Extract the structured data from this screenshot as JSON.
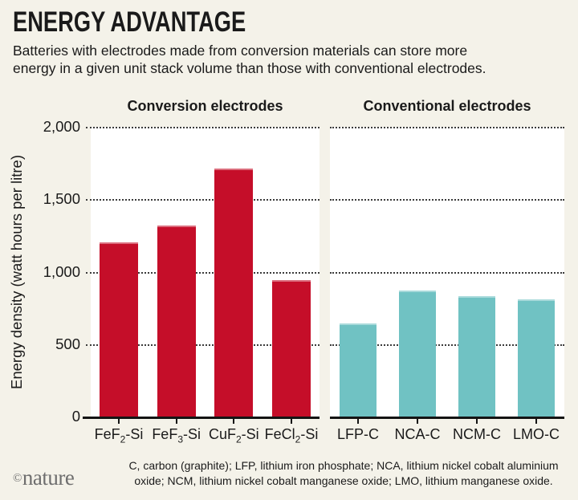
{
  "header": {
    "title": "ENERGY ADVANTAGE",
    "subtitle_lines": [
      "Batteries with electrodes made from conversion materials can store more",
      "energy in a given unit stack volume than those with conventional electrodes."
    ]
  },
  "axis": {
    "ylabel": "Energy density (watt hours per litre)",
    "yticks": [
      "2,000",
      "1,500",
      "1,000",
      "500",
      "0"
    ],
    "ymin": 0,
    "ymax": 2000,
    "grid_interval": 500,
    "grid_style": "dotted"
  },
  "chart_data": [
    {
      "type": "bar",
      "title": "Conversion electrodes",
      "bar_color": "#C50E29",
      "categories": [
        "FeF2-Si",
        "FeF3-Si",
        "CuF2-Si",
        "FeCl2-Si"
      ],
      "categories_rich": [
        {
          "pre": "FeF",
          "sub": "2",
          "post": "-Si"
        },
        {
          "pre": "FeF",
          "sub": "3",
          "post": "-Si"
        },
        {
          "pre": "CuF",
          "sub": "2",
          "post": "-Si"
        },
        {
          "pre": "FeCl",
          "sub": "2",
          "post": "-Si"
        }
      ],
      "values": [
        1200,
        1320,
        1710,
        940
      ],
      "xlabel": "",
      "ylabel": "Energy density (watt hours per litre)",
      "ylim": [
        0,
        2000
      ],
      "grid": "horizontal dotted every 500",
      "legend": "none"
    },
    {
      "type": "bar",
      "title": "Conventional electrodes",
      "bar_color": "#70C2C3",
      "categories": [
        "LFP-C",
        "NCA-C",
        "NCM-C",
        "LMO-C"
      ],
      "categories_rich": [
        {
          "pre": "LFP-C",
          "sub": "",
          "post": ""
        },
        {
          "pre": "NCA-C",
          "sub": "",
          "post": ""
        },
        {
          "pre": "NCM-C",
          "sub": "",
          "post": ""
        },
        {
          "pre": "LMO-C",
          "sub": "",
          "post": ""
        }
      ],
      "values": [
        640,
        870,
        830,
        810
      ],
      "xlabel": "",
      "ylabel": "Energy density (watt hours per litre)",
      "ylim": [
        0,
        2000
      ],
      "grid": "horizontal dotted every 500",
      "legend": "none"
    }
  ],
  "footer": {
    "logo_symbol": "©",
    "logo_text": "nature",
    "footnote_lines": [
      "C, carbon (graphite); LFP, lithium iron phosphate; NCA, lithium nickel cobalt aluminium",
      "oxide; NCM, lithium nickel cobalt manganese oxide; LMO, lithium manganese oxide."
    ]
  },
  "colors": {
    "background": "#F4F2E9",
    "plot_background": "#FFFFFF",
    "conversion_red": "#C50E29",
    "conventional_teal": "#70C2C3",
    "axis_black": "#141414",
    "gridline_gray": "#3B3B3B",
    "logo_gray": "#6E6E6E"
  }
}
